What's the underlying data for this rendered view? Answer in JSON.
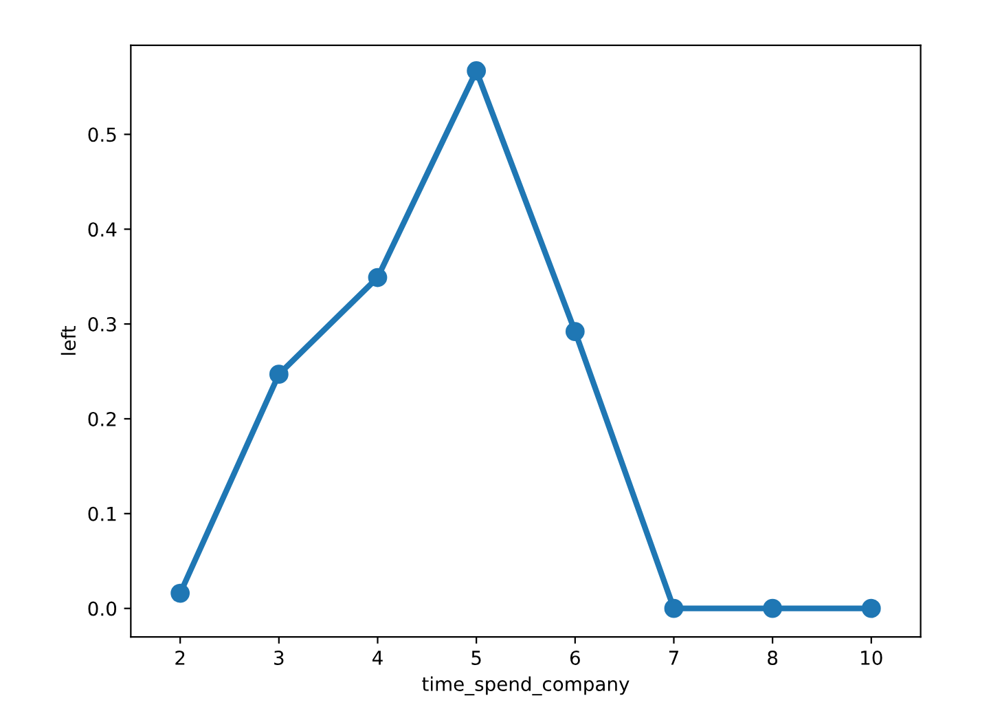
{
  "chart_data": {
    "type": "line",
    "xlabel": "time_spend_company",
    "ylabel": "left",
    "categories": [
      "2",
      "3",
      "4",
      "5",
      "6",
      "7",
      "8",
      "10"
    ],
    "series": [
      {
        "color": "#1f77b4",
        "values": [
          0.016,
          0.247,
          0.349,
          0.567,
          0.292,
          0.0,
          0.0,
          0.0
        ]
      }
    ],
    "ylim": [
      -0.03,
      0.594
    ],
    "yticks": [
      {
        "value": 0,
        "label": "0.0"
      },
      0.1,
      0.2,
      0.3,
      0.4,
      0.5
    ],
    "marker": "circle",
    "line_style": "solid",
    "grid": false
  }
}
